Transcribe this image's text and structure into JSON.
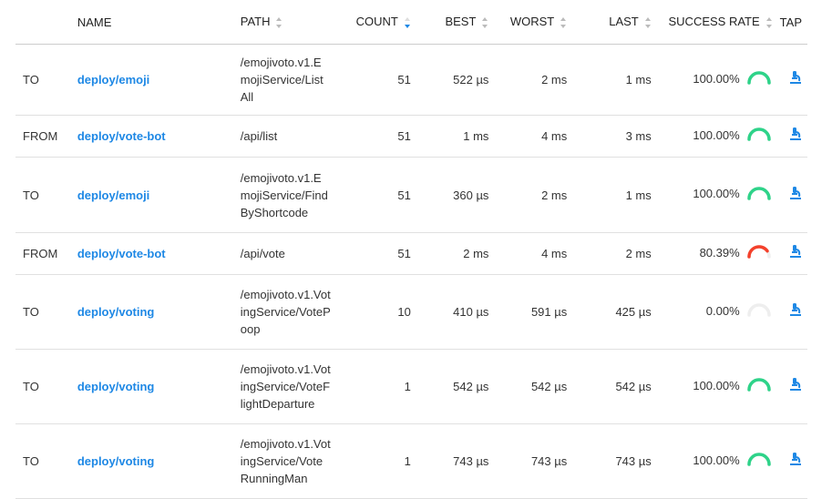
{
  "headers": {
    "direction": "",
    "name": "NAME",
    "path": "PATH",
    "count": "COUNT",
    "best": "BEST",
    "worst": "WORST",
    "last": "LAST",
    "success_rate": "SUCCESS RATE",
    "tap": "TAP"
  },
  "sorted_column": "count",
  "sorted_direction": "descending",
  "colors": {
    "link": "#1e88e5",
    "good": "#2ed389",
    "bad": "#f4412b",
    "empty": "#eeeeee"
  },
  "tap_icon": "microscope-icon",
  "rows": [
    {
      "direction": "TO",
      "name": "deploy/emoji",
      "path": "/emojivoto.v1.EmojiService/ListAll",
      "count": "51",
      "best": "522 µs",
      "worst": "2 ms",
      "last": "1 ms",
      "success_rate": "100.00%",
      "rate": 1.0
    },
    {
      "direction": "FROM",
      "name": "deploy/vote-bot",
      "path": "/api/list",
      "count": "51",
      "best": "1 ms",
      "worst": "4 ms",
      "last": "3 ms",
      "success_rate": "100.00%",
      "rate": 1.0
    },
    {
      "direction": "TO",
      "name": "deploy/emoji",
      "path": "/emojivoto.v1.EmojiService/FindByShortcode",
      "count": "51",
      "best": "360 µs",
      "worst": "2 ms",
      "last": "1 ms",
      "success_rate": "100.00%",
      "rate": 1.0
    },
    {
      "direction": "FROM",
      "name": "deploy/vote-bot",
      "path": "/api/vote",
      "count": "51",
      "best": "2 ms",
      "worst": "4 ms",
      "last": "2 ms",
      "success_rate": "80.39%",
      "rate": 0.8039
    },
    {
      "direction": "TO",
      "name": "deploy/voting",
      "path": "/emojivoto.v1.VotingService/VotePoop",
      "count": "10",
      "best": "410 µs",
      "worst": "591 µs",
      "last": "425 µs",
      "success_rate": "0.00%",
      "rate": 0.0
    },
    {
      "direction": "TO",
      "name": "deploy/voting",
      "path": "/emojivoto.v1.VotingService/VoteFlightDeparture",
      "count": "1",
      "best": "542 µs",
      "worst": "542 µs",
      "last": "542 µs",
      "success_rate": "100.00%",
      "rate": 1.0
    },
    {
      "direction": "TO",
      "name": "deploy/voting",
      "path": "/emojivoto.v1.VotingService/VoteRunningMan",
      "count": "1",
      "best": "743 µs",
      "worst": "743 µs",
      "last": "743 µs",
      "success_rate": "100.00%",
      "rate": 1.0
    }
  ]
}
